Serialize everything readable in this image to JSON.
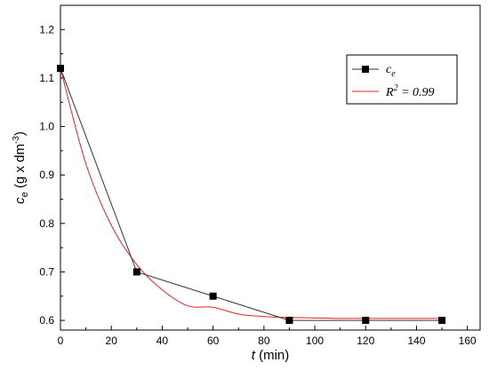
{
  "chart_data": {
    "type": "line",
    "x_axis": {
      "title_italic": "t",
      "title_rest": " (min)",
      "range": [
        0,
        165
      ],
      "ticks": [
        0,
        20,
        40,
        60,
        80,
        100,
        120,
        140,
        160
      ],
      "tick_labels": [
        "0",
        "20",
        "40",
        "60",
        "80",
        "100",
        "120",
        "140",
        "160"
      ]
    },
    "y_axis": {
      "title_italic": "c",
      "title_sub": "e",
      "title_rest": " (g x dm",
      "title_sup": "-3",
      "title_end": ")",
      "range": [
        0.58,
        1.25
      ],
      "ticks": [
        0.6,
        0.7,
        0.8,
        0.9,
        1.0,
        1.1,
        1.2
      ],
      "tick_labels": [
        "0.6",
        "0.7",
        "0.8",
        "0.9",
        "1.0",
        "1.1",
        "1.2"
      ]
    },
    "grid": false,
    "legend_position": "top-right",
    "series": [
      {
        "name": "ce",
        "legend_main": "c",
        "legend_sub": "e",
        "kind": "line-markers",
        "color": "#000000",
        "line_color": "#333333",
        "marker": "square",
        "x": [
          0,
          30,
          60,
          90,
          120,
          150
        ],
        "y": [
          1.12,
          0.7,
          0.65,
          0.6,
          0.6,
          0.6
        ]
      },
      {
        "name": "R2 = 0.99",
        "legend_main": "R",
        "legend_sup": "2",
        "legend_rest": " = 0.99",
        "kind": "fit",
        "color": "#e8211f",
        "x": [
          0,
          10,
          20,
          30,
          40,
          50,
          60,
          70,
          80,
          90,
          100,
          110,
          120,
          130,
          140,
          150
        ],
        "y": [
          1.12,
          0.923,
          0.796,
          0.715,
          0.663,
          0.63,
          0.627,
          0.613,
          0.608,
          0.606,
          0.605,
          0.604,
          0.604,
          0.604,
          0.604,
          0.604
        ]
      }
    ]
  }
}
